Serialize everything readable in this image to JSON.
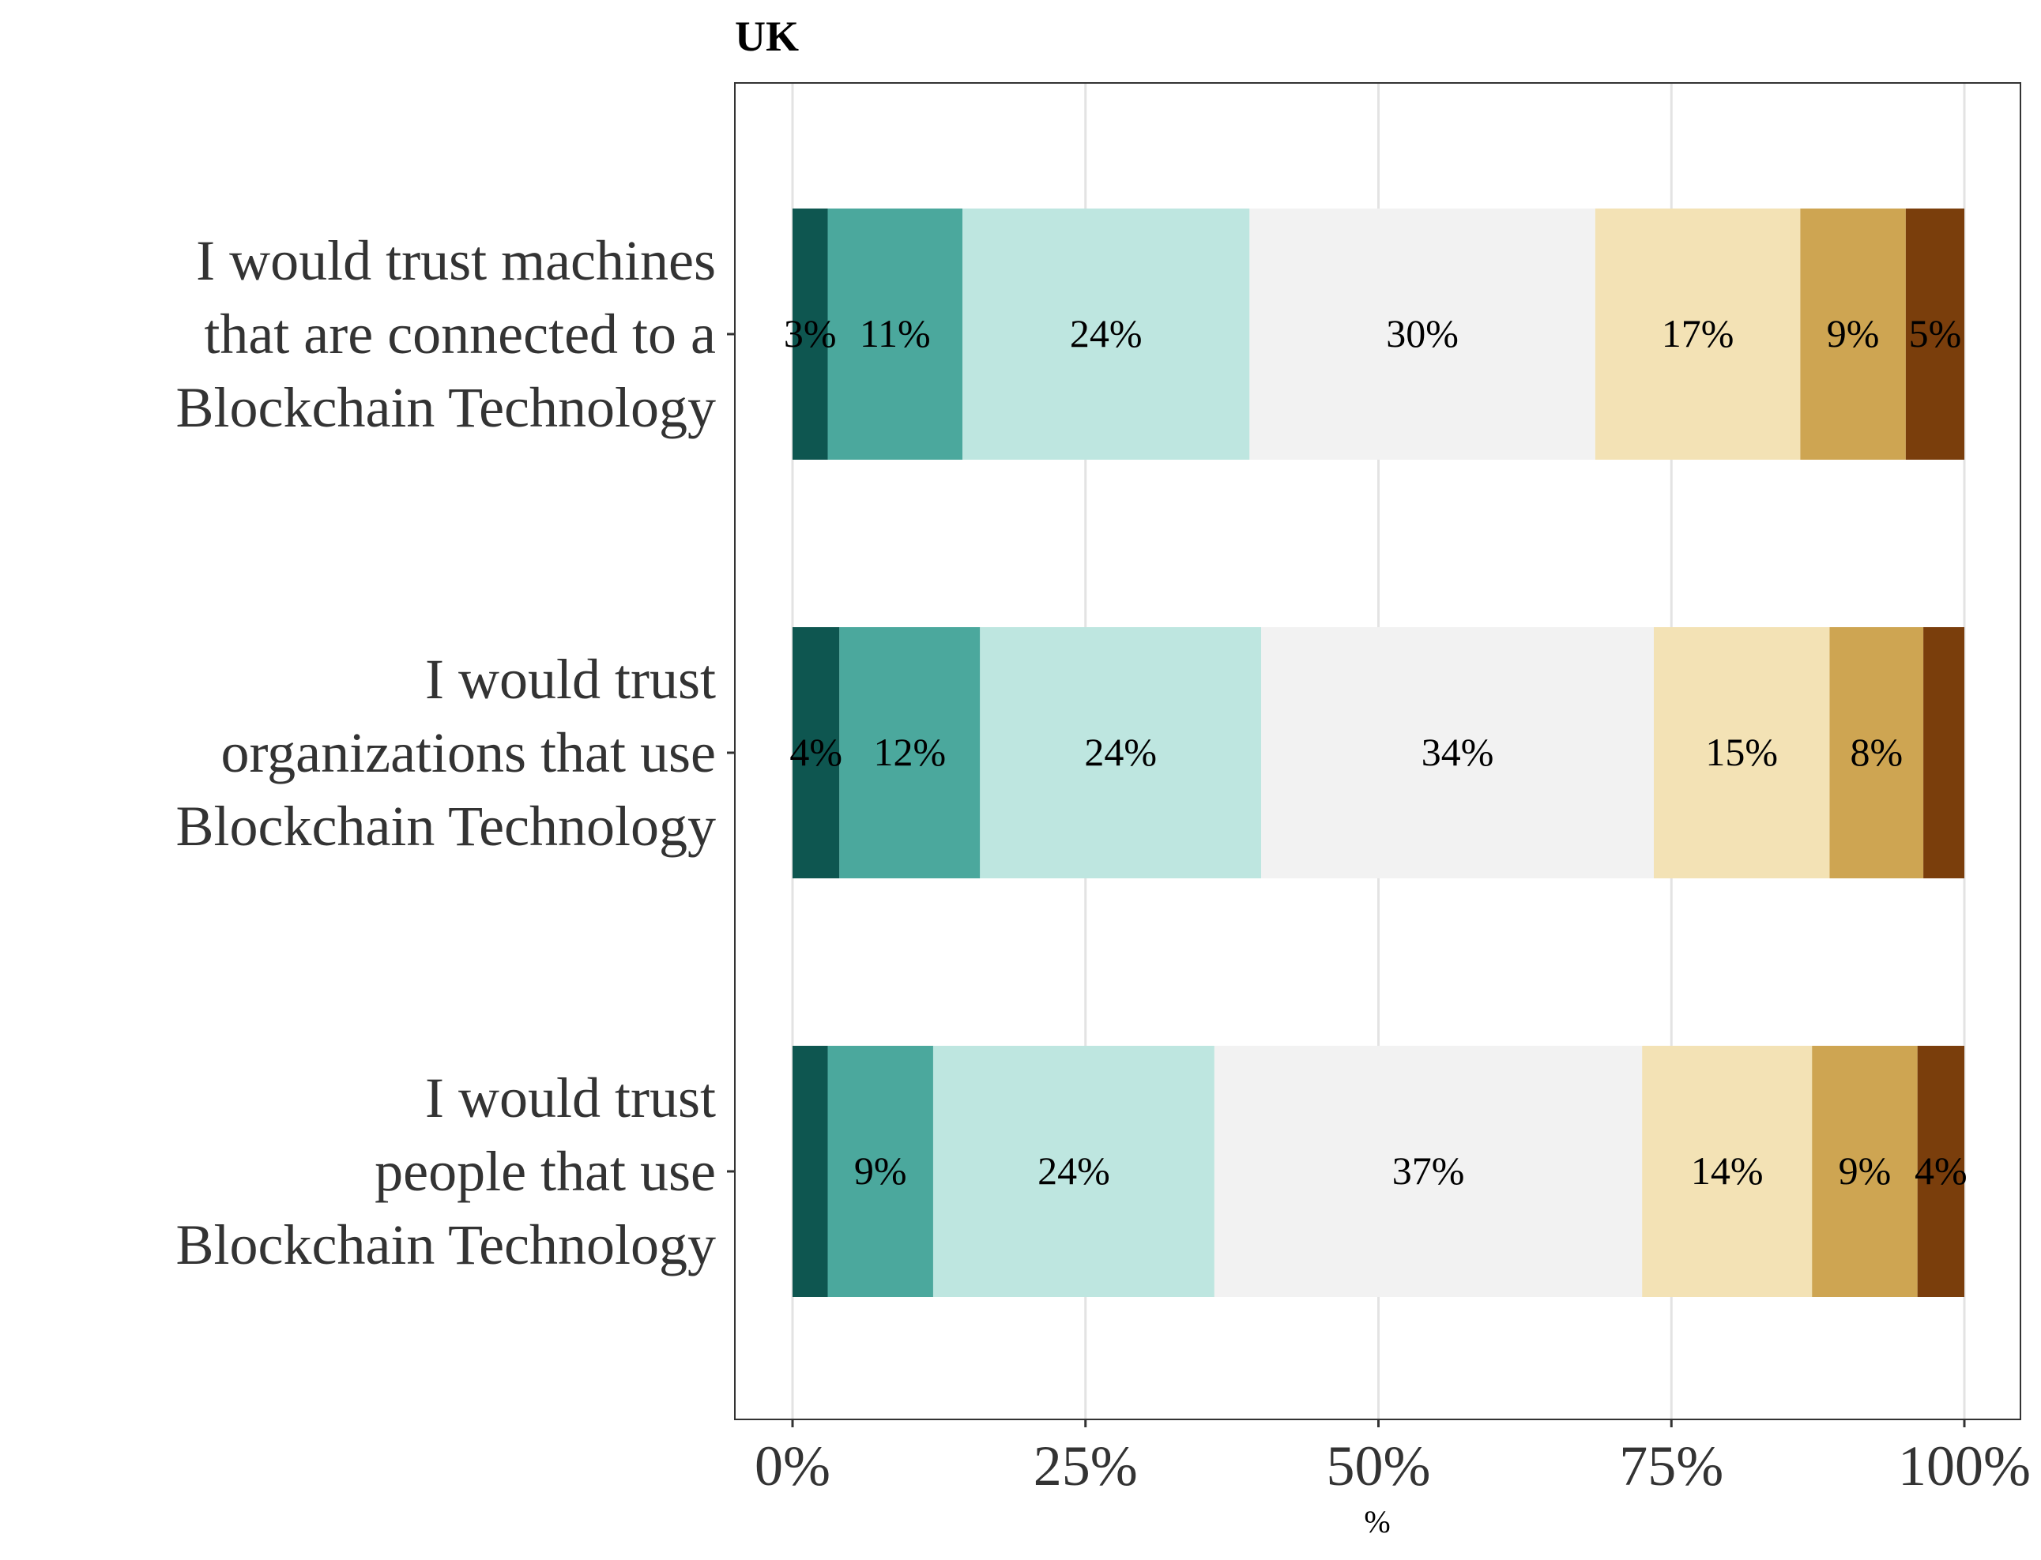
{
  "chart_data": {
    "type": "bar",
    "orientation": "horizontal",
    "stacked": true,
    "title": "UK",
    "xlabel": "%",
    "ylabel": "",
    "xlim": [
      0,
      100
    ],
    "xticks": [
      "0%",
      "25%",
      "50%",
      "75%",
      "100%"
    ],
    "grid": true,
    "legend": "none",
    "categories": [
      [
        "I would trust machines",
        "that are connected to a",
        "Blockchain Technology"
      ],
      [
        "I would trust",
        "organizations that use",
        "Blockchain Technology"
      ],
      [
        "I would trust",
        "people that use",
        "Blockchain Technology"
      ]
    ],
    "segment_colors": [
      "#0e5650",
      "#4ba89d",
      "#bee6e0",
      "#f2f2f2",
      "#f3e2b5",
      "#cea552",
      "#7a3e0c"
    ],
    "series": [
      {
        "values": [
          3,
          4,
          3
        ],
        "labels": [
          "3%",
          "4%",
          ""
        ]
      },
      {
        "values": [
          11.5,
          12,
          9
        ],
        "labels": [
          "11%",
          "12%",
          "9%"
        ]
      },
      {
        "values": [
          24.5,
          24,
          24
        ],
        "labels": [
          "24%",
          "24%",
          "24%"
        ]
      },
      {
        "values": [
          29.5,
          33.5,
          36.5
        ],
        "labels": [
          "30%",
          "34%",
          "37%"
        ]
      },
      {
        "values": [
          17.5,
          15,
          14.5
        ],
        "labels": [
          "17%",
          "15%",
          "14%"
        ]
      },
      {
        "values": [
          9,
          8,
          9
        ],
        "labels": [
          "9%",
          "8%",
          "9%"
        ]
      },
      {
        "values": [
          5,
          3.5,
          4
        ],
        "labels": [
          "5%",
          "",
          "4%"
        ]
      }
    ]
  }
}
